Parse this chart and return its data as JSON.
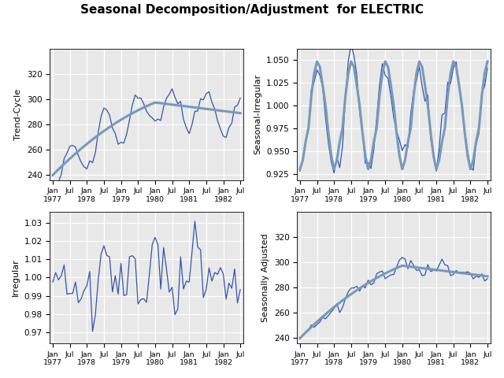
{
  "title": "Seasonal Decomposition/Adjustment  for ELECTRIC",
  "title_fontsize": 11,
  "title_fontweight": "bold",
  "bg_color": "#e8e8e8",
  "line_color_main": "#3355aa",
  "line_color_trend": "#7799bb",
  "grid_color": "white",
  "axis_label_fontsize": 8,
  "ylim_trend": [
    236,
    340
  ],
  "yticks_trend": [
    240,
    260,
    280,
    300,
    320
  ],
  "ylim_si": [
    0.918,
    1.062
  ],
  "yticks_si": [
    0.925,
    0.95,
    0.975,
    1.0,
    1.025,
    1.05
  ],
  "ylim_irr": [
    0.964,
    1.036
  ],
  "yticks_irr": [
    0.97,
    0.98,
    0.99,
    1.0,
    1.01,
    1.02,
    1.03
  ],
  "ylim_sa": [
    236,
    340
  ],
  "yticks_sa": [
    240,
    260,
    280,
    300,
    320
  ],
  "subplot_labels": [
    "Trend-Cycle",
    "Seasonal-Irregular",
    "Irregular",
    "Seasonally Adjusted"
  ],
  "xtick_positions": [
    0,
    6,
    12,
    18,
    24,
    30,
    36,
    42,
    48,
    54,
    60,
    66
  ],
  "xtick_labels_line1": [
    "Jan",
    "Jul",
    "Jan",
    "Jul",
    "Jan",
    "Jul",
    "Jan",
    "Jul",
    "Jan",
    "Jul",
    "Jan",
    "Jul"
  ],
  "xtick_labels_line2": [
    "1977",
    "",
    "1978",
    "",
    "1979",
    "",
    "1980",
    "",
    "1981",
    "",
    "1982",
    ""
  ]
}
